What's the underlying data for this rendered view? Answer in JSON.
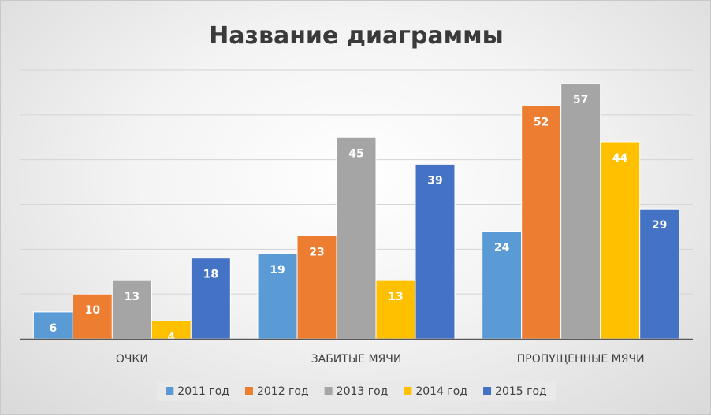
{
  "chart_data": {
    "type": "bar",
    "title": "Название диаграммы",
    "categories": [
      "ОЧКИ",
      "ЗАБИТЫЕ МЯЧИ",
      "ПРОПУЩЕННЫЕ МЯЧИ"
    ],
    "series": [
      {
        "name": "2011 год",
        "color": "#5b9bd5",
        "values": [
          6,
          19,
          24
        ]
      },
      {
        "name": "2012 год",
        "color": "#ed7d31",
        "values": [
          10,
          23,
          52
        ]
      },
      {
        "name": "2013 год",
        "color": "#a5a5a5",
        "values": [
          13,
          45,
          57
        ]
      },
      {
        "name": "2014 год",
        "color": "#ffc000",
        "values": [
          4,
          13,
          44
        ]
      },
      {
        "name": "2015 год",
        "color": "#4472c4",
        "values": [
          18,
          39,
          29
        ]
      }
    ],
    "ylim": [
      0,
      60
    ],
    "grid": true,
    "xlabel": "",
    "ylabel": "",
    "legend": "bottom",
    "data_labels": true
  }
}
